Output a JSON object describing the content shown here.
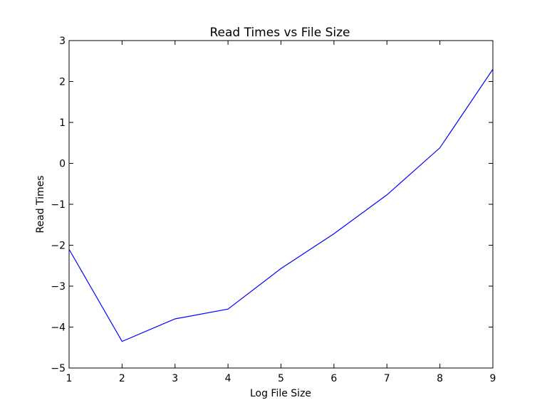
{
  "chart_data": {
    "type": "line",
    "title": "Read Times vs File Size",
    "xlabel": "Log File Size",
    "ylabel": "Read Times",
    "xlim": [
      1,
      9
    ],
    "ylim": [
      -5,
      3
    ],
    "x_ticks": [
      1,
      2,
      3,
      4,
      5,
      6,
      7,
      8,
      9
    ],
    "y_ticks": [
      -5,
      -4,
      -3,
      -2,
      -1,
      0,
      1,
      2,
      3
    ],
    "grid": false,
    "legend": "none",
    "series": [
      {
        "color": "#0000ff",
        "x": [
          1,
          2,
          3,
          4,
          5,
          6,
          7,
          8,
          9
        ],
        "y": [
          -2.1,
          -4.35,
          -3.8,
          -3.56,
          -2.57,
          -1.72,
          -0.77,
          0.38,
          2.3
        ]
      }
    ]
  }
}
